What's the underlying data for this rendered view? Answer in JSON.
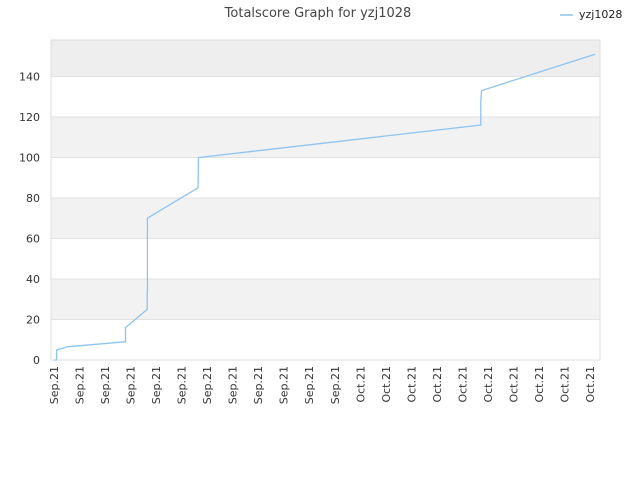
{
  "chart_data": {
    "type": "line",
    "title": "Totalscore Graph for yzj1028",
    "xlabel": "",
    "ylabel": "",
    "ylim": [
      0,
      158
    ],
    "yticks": [
      0,
      20,
      40,
      60,
      80,
      100,
      120,
      140
    ],
    "grid": true,
    "legend_position": "top-right",
    "series_color": "#8ec4f0",
    "band_color": "#f2f2f2",
    "x_tick_labels": [
      "Sep.21",
      "Sep.21",
      "Sep.21",
      "Sep.21",
      "Sep.21",
      "Sep.21",
      "Sep.21",
      "Sep.21",
      "Sep.21",
      "Sep.21",
      "Sep.21",
      "Sep.21",
      "Oct.21",
      "Oct.21",
      "Oct.21",
      "Oct.21",
      "Oct.21",
      "Oct.21",
      "Oct.21",
      "Oct.21",
      "Oct.21",
      "Oct.21"
    ],
    "series": [
      {
        "name": "yzj1028",
        "x": [
          0.0,
          0.1,
          0.1,
          0.4,
          0.5,
          2.78,
          2.8,
          2.8,
          3.65,
          3.65,
          3.66,
          3.66,
          5.64,
          5.66,
          5.68,
          16.7,
          16.72,
          16.72,
          16.75,
          21.2
        ],
        "y": [
          0,
          0,
          5,
          6,
          6.5,
          9,
          9,
          16,
          25,
          32,
          34,
          70,
          85,
          100,
          100,
          116,
          116,
          128,
          133,
          151
        ]
      }
    ]
  }
}
